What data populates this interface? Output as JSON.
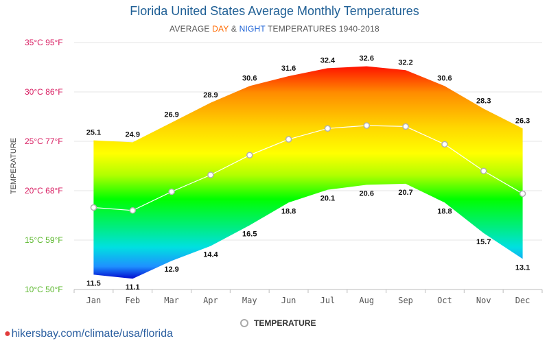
{
  "header": {
    "title": "Florida United States Average Monthly Temperatures",
    "subtitle_pre": "AVERAGE ",
    "subtitle_day": "DAY",
    "subtitle_mid": " & ",
    "subtitle_night": "NIGHT",
    "subtitle_post": " TEMPERATURES 1940-2018"
  },
  "legend": {
    "label": "TEMPERATURE"
  },
  "footer": {
    "source": "hikersbay.com/climate/usa/florida"
  },
  "chart_data": {
    "type": "area",
    "ylabel": "TEMPERATURE",
    "ylim": [
      10,
      35
    ],
    "yticks": [
      {
        "value": 35,
        "label": "35°C 95°F",
        "color": "#d81b60"
      },
      {
        "value": 30,
        "label": "30°C 86°F",
        "color": "#d81b60"
      },
      {
        "value": 25,
        "label": "25°C 77°F",
        "color": "#d81b60"
      },
      {
        "value": 20,
        "label": "20°C 68°F",
        "color": "#d81b60"
      },
      {
        "value": 15,
        "label": "15°C 59°F",
        "color": "#5cb82e"
      },
      {
        "value": 10,
        "label": "10°C 50°F",
        "color": "#5cb82e"
      }
    ],
    "categories": [
      "Jan",
      "Feb",
      "Mar",
      "Apr",
      "May",
      "Jun",
      "Jul",
      "Aug",
      "Sep",
      "Oct",
      "Nov",
      "Dec"
    ],
    "series": [
      {
        "name": "DAY",
        "values": [
          25.1,
          24.9,
          26.9,
          28.9,
          30.6,
          31.6,
          32.4,
          32.6,
          32.2,
          30.6,
          28.3,
          26.3
        ]
      },
      {
        "name": "NIGHT",
        "values": [
          11.5,
          11.1,
          12.9,
          14.4,
          16.5,
          18.8,
          20.1,
          20.6,
          20.7,
          18.8,
          15.7,
          13.1
        ]
      },
      {
        "name": "TEMPERATURE",
        "values": [
          18.3,
          18.0,
          19.9,
          21.6,
          23.6,
          25.2,
          26.3,
          26.6,
          26.5,
          24.7,
          22.0,
          19.7
        ]
      }
    ],
    "colors": {
      "gradient": [
        "#ff0000",
        "#ff8c00",
        "#ffd700",
        "#ffff00",
        "#b0ff00",
        "#00ff00",
        "#00ee77",
        "#00e0e0",
        "#1e90ff",
        "#0000cc"
      ],
      "average_line": "#ffffff",
      "average_marker_stroke": "#b0b0b0"
    },
    "grid": true,
    "legend_position": "bottom-center"
  }
}
